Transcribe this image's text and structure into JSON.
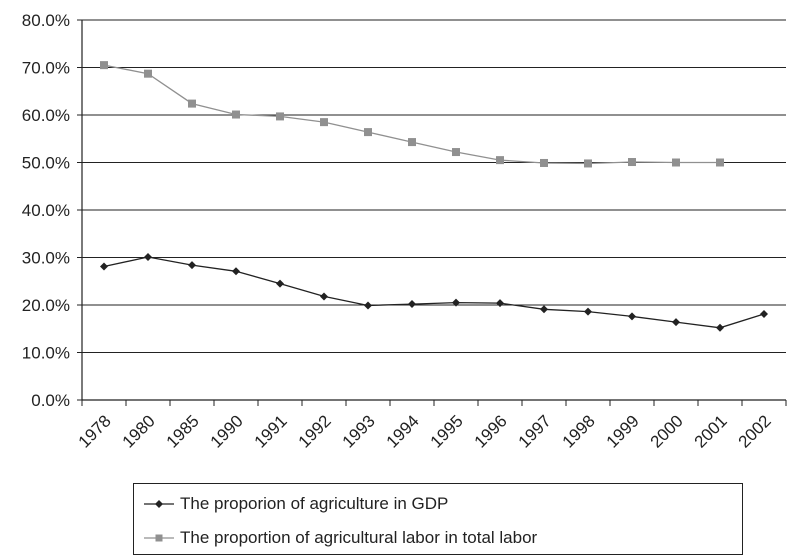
{
  "chart_data": {
    "type": "line",
    "categories": [
      "1978",
      "1980",
      "1985",
      "1990",
      "1991",
      "1992",
      "1993",
      "1994",
      "1995",
      "1996",
      "1997",
      "1998",
      "1999",
      "2000",
      "2001",
      "2002"
    ],
    "ylim": [
      0,
      80
    ],
    "yticks": [
      "0.0%",
      "10.0%",
      "20.0%",
      "30.0%",
      "40.0%",
      "50.0%",
      "60.0%",
      "70.0%",
      "80.0%"
    ],
    "grid": true,
    "legend_position": "bottom",
    "series": [
      {
        "name": "The proporion of agriculture in GDP",
        "marker": "diamond",
        "color": "#222222",
        "values": [
          28.1,
          30.1,
          28.4,
          27.1,
          24.5,
          21.8,
          19.9,
          20.2,
          20.5,
          20.4,
          19.1,
          18.6,
          17.6,
          16.4,
          15.2,
          18.1
        ]
      },
      {
        "name": "The proportion of agricultural labor in total labor",
        "marker": "square",
        "color": "#909090",
        "values": [
          70.5,
          68.7,
          62.4,
          60.1,
          59.7,
          58.5,
          56.4,
          54.3,
          52.2,
          50.5,
          49.9,
          49.8,
          50.1,
          50.0,
          50.0,
          null
        ]
      }
    ]
  }
}
